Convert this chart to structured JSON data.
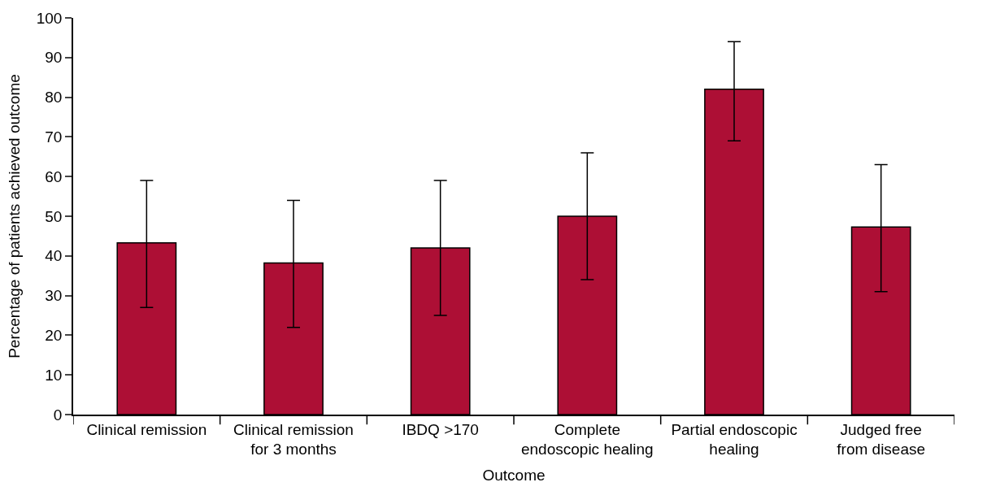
{
  "chart_data": {
    "type": "bar",
    "xlabel": "Outcome",
    "ylabel": "Percentage of patients achieved outcome",
    "categories": [
      "Clinical remission",
      "Clinical remission\nfor 3 months",
      "IBDQ >170",
      "Complete\nendoscopic healing",
      "Partial endoscopic\nhealing",
      "Judged free\nfrom disease"
    ],
    "values": [
      43.3,
      38.2,
      42,
      50,
      82,
      47.3
    ],
    "errors": [
      [
        27,
        59
      ],
      [
        22,
        54
      ],
      [
        25,
        59
      ],
      [
        34,
        66
      ],
      [
        69,
        94
      ],
      [
        31,
        63
      ]
    ],
    "color": "#ad0f35",
    "ylim": [
      0,
      100
    ],
    "yticks": [
      0,
      10,
      20,
      30,
      40,
      50,
      60,
      70,
      80,
      90,
      100
    ]
  }
}
